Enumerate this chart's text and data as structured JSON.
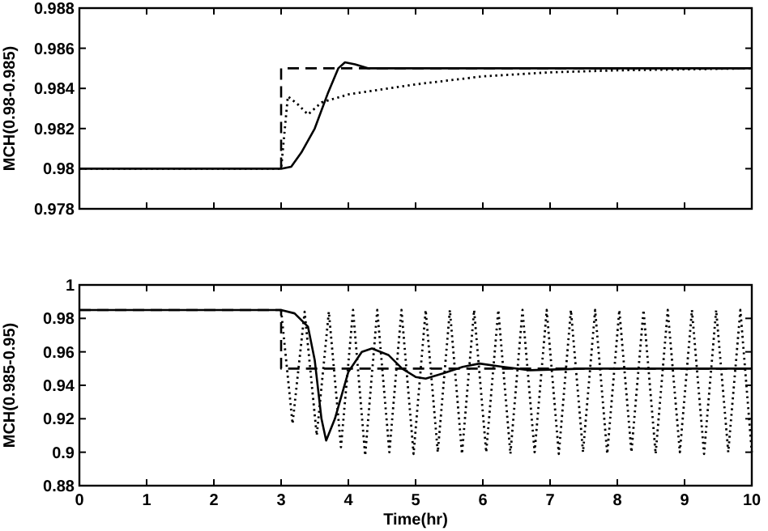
{
  "chart_data": [
    {
      "type": "line",
      "ylabel": "MCH(0.98-0.985)",
      "xlim": [
        0,
        10
      ],
      "xticks": [
        0,
        1,
        2,
        3,
        4,
        5,
        6,
        7,
        8,
        9,
        10
      ],
      "ylim": [
        0.978,
        0.988
      ],
      "yticks": [
        0.978,
        {
          "value": 0.98,
          "label": "0.98"
        },
        0.982,
        0.984,
        0.986,
        0.988
      ],
      "tick_labels": "y",
      "series": [
        {
          "color": "#000000",
          "line_style": "dotted",
          "x": [
            0,
            3,
            3.05,
            3.1,
            3.25,
            3.4,
            3.6,
            4,
            5,
            6,
            7,
            8,
            10
          ],
          "values": [
            0.98,
            0.98,
            0.9818,
            0.9836,
            0.9832,
            0.9827,
            0.9833,
            0.9837,
            0.9842,
            0.9846,
            0.9848,
            0.9849,
            0.985
          ]
        },
        {
          "color": "#000000",
          "line_style": "dashed",
          "x": [
            3,
            3,
            10
          ],
          "values": [
            0.98,
            0.985,
            0.985
          ]
        },
        {
          "color": "#000000",
          "line_style": "solid",
          "x": [
            0,
            3,
            3.15,
            3.3,
            3.5,
            3.7,
            3.85,
            3.95,
            4.1,
            4.3,
            4.6,
            5,
            10
          ],
          "values": [
            0.98,
            0.98,
            0.9801,
            0.9808,
            0.982,
            0.9838,
            0.985,
            0.9853,
            0.9852,
            0.985,
            0.985,
            0.985,
            0.985
          ]
        }
      ]
    },
    {
      "type": "line",
      "xlabel": "Time(hr)",
      "ylabel": "MCH(0.985-0.95)",
      "xlim": [
        0,
        10
      ],
      "xticks": [
        0,
        1,
        2,
        3,
        4,
        5,
        6,
        7,
        8,
        9,
        10
      ],
      "ylim": [
        0.88,
        1
      ],
      "yticks": [
        0.88,
        {
          "value": 0.9,
          "label": "0.9"
        },
        0.92,
        0.94,
        0.96,
        0.98,
        {
          "value": 1,
          "label": "1"
        }
      ],
      "series": [
        {
          "color": "#000000",
          "line_style": "dotted",
          "x": [
            3,
            3.17,
            3.35,
            3.53,
            3.71,
            3.89,
            4.07,
            4.25,
            4.43,
            4.61,
            4.79,
            4.97,
            5.15,
            5.33,
            5.51,
            5.69,
            5.87,
            6.05,
            6.23,
            6.41,
            6.59,
            6.77,
            6.95,
            7.13,
            7.31,
            7.49,
            7.67,
            7.85,
            8.03,
            8.21,
            8.39,
            8.57,
            8.75,
            8.93,
            9.11,
            9.29,
            9.47,
            9.65,
            9.83,
            10
          ],
          "values": [
            0.985,
            0.917,
            0.984,
            0.91,
            0.984,
            0.903,
            0.985,
            0.898,
            0.985,
            0.9,
            0.985,
            0.899,
            0.985,
            0.9,
            0.985,
            0.899,
            0.985,
            0.9,
            0.985,
            0.899,
            0.985,
            0.9,
            0.985,
            0.899,
            0.985,
            0.9,
            0.985,
            0.899,
            0.985,
            0.9,
            0.985,
            0.899,
            0.985,
            0.9,
            0.985,
            0.899,
            0.985,
            0.9,
            0.985,
            0.9
          ]
        },
        {
          "color": "#000000",
          "line_style": "dashed",
          "x": [
            0,
            3,
            3,
            10
          ],
          "values": [
            0.985,
            0.985,
            0.95,
            0.95
          ]
        },
        {
          "color": "#000000",
          "line_style": "solid",
          "x": [
            0,
            3,
            3.2,
            3.4,
            3.5,
            3.6,
            3.67,
            3.8,
            4,
            4.2,
            4.35,
            4.6,
            4.8,
            5,
            5.15,
            5.4,
            5.7,
            5.95,
            6.3,
            6.7,
            7.5,
            8,
            10
          ],
          "values": [
            0.985,
            0.985,
            0.983,
            0.975,
            0.955,
            0.92,
            0.907,
            0.92,
            0.948,
            0.96,
            0.962,
            0.958,
            0.95,
            0.945,
            0.944,
            0.947,
            0.951,
            0.953,
            0.951,
            0.949,
            0.95,
            0.95,
            0.95
          ]
        }
      ]
    }
  ]
}
